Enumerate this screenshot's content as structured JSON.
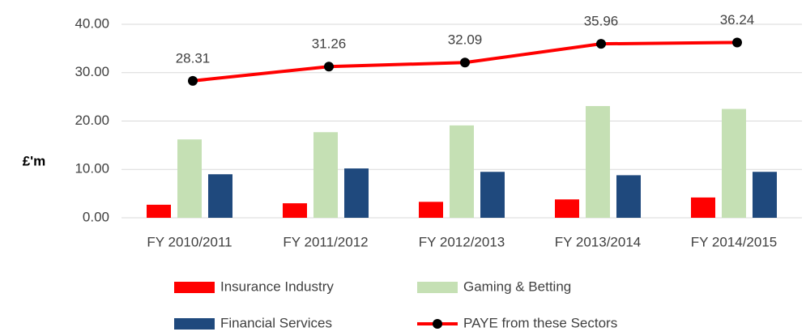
{
  "chart_data": {
    "type": "bar_line",
    "y_label": "£'m",
    "categories": [
      "FY 2010/2011",
      "FY 2011/2012",
      "FY 2012/2013",
      "FY 2013/2014",
      "FY 2014/2015"
    ],
    "series": [
      {
        "name": "Insurance Industry",
        "color": "#ff0000",
        "type": "bar",
        "values": [
          2.7,
          3.0,
          3.3,
          3.8,
          4.2
        ]
      },
      {
        "name": "Gaming & Betting",
        "color": "#c5e0b4",
        "type": "bar",
        "values": [
          16.2,
          17.7,
          19.1,
          23.1,
          22.5
        ]
      },
      {
        "name": "Financial Services",
        "color": "#1f497d",
        "type": "bar",
        "values": [
          9.0,
          10.2,
          9.5,
          8.8,
          9.5
        ]
      },
      {
        "name": "PAYE from these Sectors",
        "color": "#ff0000",
        "marker_color": "#000000",
        "type": "line",
        "values": [
          28.31,
          31.26,
          32.09,
          35.96,
          36.24
        ]
      }
    ],
    "ylim": [
      0,
      40
    ],
    "yticks": [
      {
        "value": 0,
        "label": "0.00"
      },
      {
        "value": 10,
        "label": "10.00"
      },
      {
        "value": 20,
        "label": "20.00"
      },
      {
        "value": 30,
        "label": "30.00"
      },
      {
        "value": 40,
        "label": "40.00"
      }
    ],
    "grid": true
  }
}
